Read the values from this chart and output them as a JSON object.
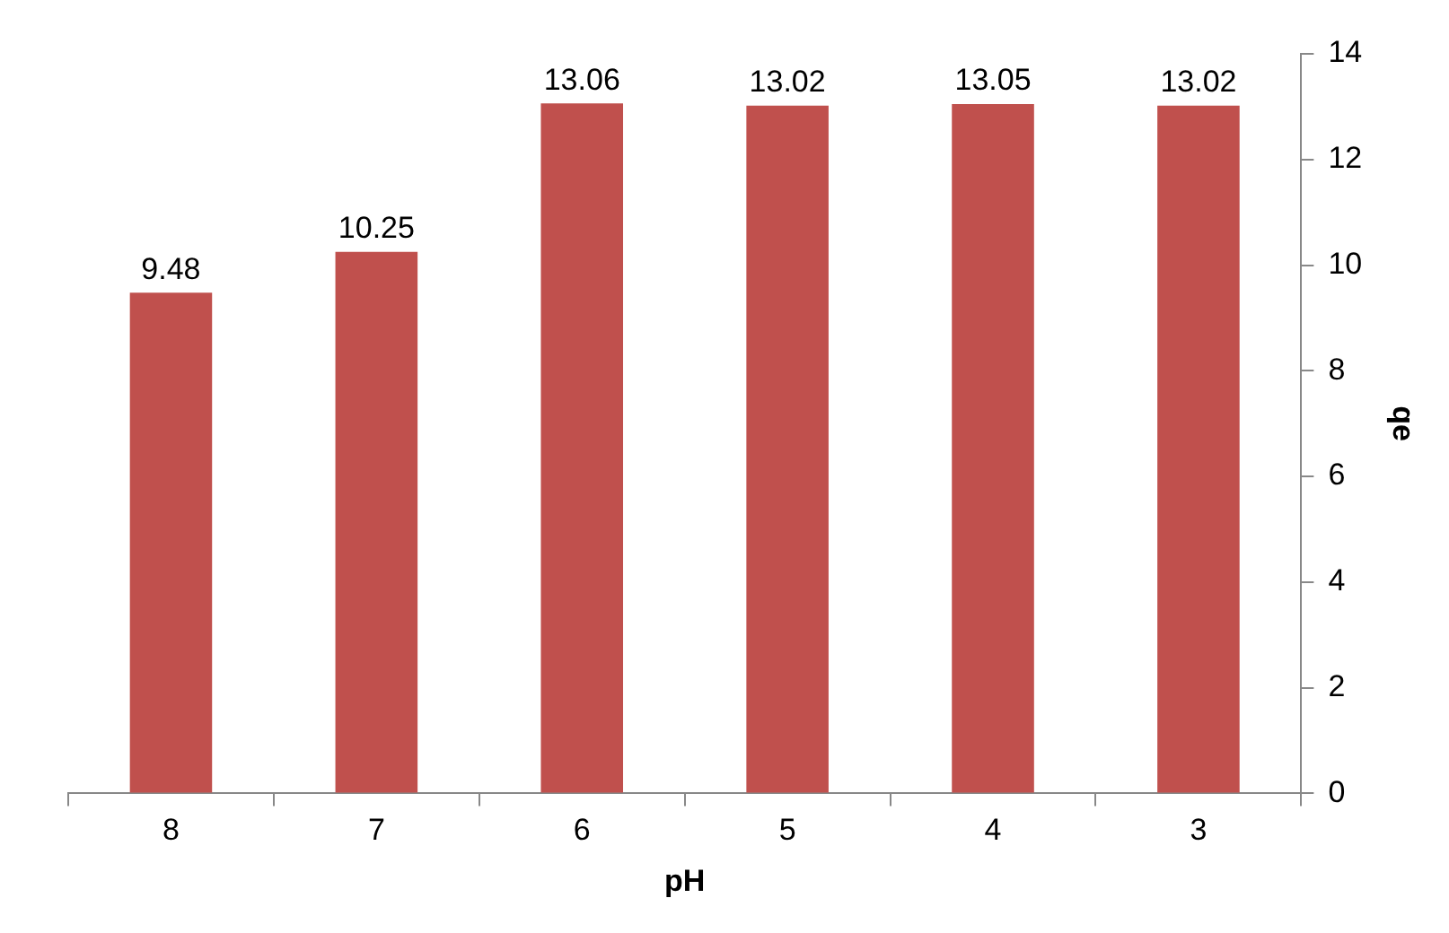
{
  "chart_data": {
    "type": "bar",
    "xlabel": "pH",
    "ylabel": "qe",
    "categories": [
      "8",
      "7",
      "6",
      "5",
      "4",
      "3"
    ],
    "values": [
      9.48,
      10.25,
      13.06,
      13.02,
      13.05,
      13.02
    ],
    "color": "#c0504d",
    "ylim": [
      0,
      14
    ],
    "yticks": [
      0,
      2,
      4,
      6,
      8,
      10,
      12,
      14
    ],
    "data_labels": true,
    "grid": false,
    "legend": false
  }
}
